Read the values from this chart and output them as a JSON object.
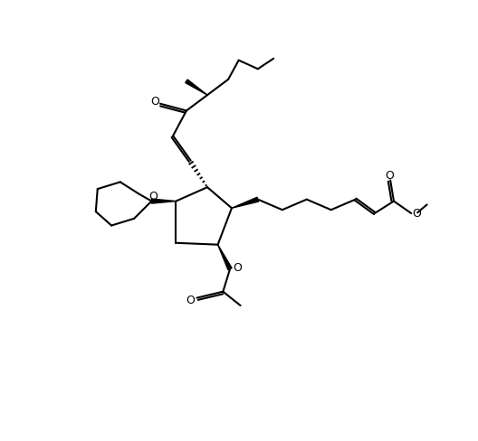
{
  "bg": "#ffffff",
  "lc": "#000000",
  "lw": 1.5,
  "fw": 5.28,
  "fh": 4.88,
  "dpi": 100,
  "xlim": [
    0,
    10.56
  ],
  "ylim": [
    0,
    9.76
  ]
}
